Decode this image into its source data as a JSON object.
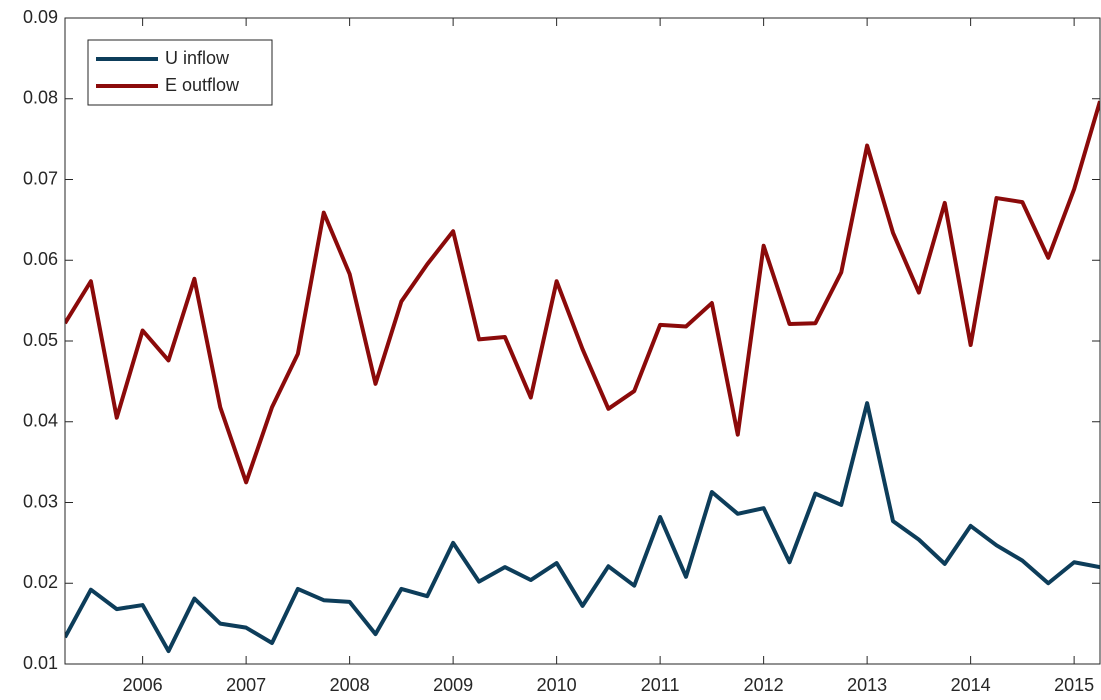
{
  "chart_data": {
    "type": "line",
    "x": [
      2005.25,
      2005.5,
      2005.75,
      2006,
      2006.25,
      2006.5,
      2006.75,
      2007,
      2007.25,
      2007.5,
      2007.75,
      2008,
      2008.25,
      2008.5,
      2008.75,
      2009,
      2009.25,
      2009.5,
      2009.75,
      2010,
      2010.25,
      2010.5,
      2010.75,
      2011,
      2011.25,
      2011.5,
      2011.75,
      2012,
      2012.25,
      2012.5,
      2012.75,
      2013,
      2013.25,
      2013.5,
      2013.75,
      2014,
      2014.25,
      2014.5,
      2014.75,
      2015,
      2015.25
    ],
    "series": [
      {
        "name": "U inflow",
        "color": "#0d3d5a",
        "values": [
          0.0133,
          0.0192,
          0.0168,
          0.0173,
          0.0116,
          0.0181,
          0.015,
          0.0145,
          0.0126,
          0.0193,
          0.0179,
          0.0177,
          0.0137,
          0.0193,
          0.0184,
          0.025,
          0.0202,
          0.022,
          0.0204,
          0.0225,
          0.0172,
          0.0221,
          0.0197,
          0.0282,
          0.0208,
          0.0313,
          0.0286,
          0.0293,
          0.0226,
          0.0311,
          0.0297,
          0.0423,
          0.0277,
          0.0254,
          0.0224,
          0.0271,
          0.0247,
          0.0228,
          0.02,
          0.0226,
          0.022
        ]
      },
      {
        "name": "E outflow",
        "color": "#8b0a0a",
        "values": [
          0.0522,
          0.0574,
          0.0405,
          0.0513,
          0.0476,
          0.0577,
          0.0418,
          0.0325,
          0.0418,
          0.0484,
          0.0659,
          0.0583,
          0.0447,
          0.0549,
          0.0595,
          0.0636,
          0.0502,
          0.0505,
          0.043,
          0.0574,
          0.049,
          0.0416,
          0.0438,
          0.052,
          0.0518,
          0.0547,
          0.0384,
          0.0618,
          0.0521,
          0.0522,
          0.0585,
          0.0742,
          0.0634,
          0.056,
          0.0671,
          0.0495,
          0.0677,
          0.0672,
          0.0603,
          0.0688,
          0.0797
        ]
      }
    ],
    "xlim": [
      2005.25,
      2015.25
    ],
    "xticks": [
      2006,
      2007,
      2008,
      2009,
      2010,
      2011,
      2012,
      2013,
      2014,
      2015
    ],
    "ylim": [
      0.01,
      0.09
    ],
    "yticks": [
      0.01,
      0.02,
      0.03,
      0.04,
      0.05,
      0.06,
      0.07,
      0.08,
      0.09
    ],
    "legend": "upper left"
  }
}
